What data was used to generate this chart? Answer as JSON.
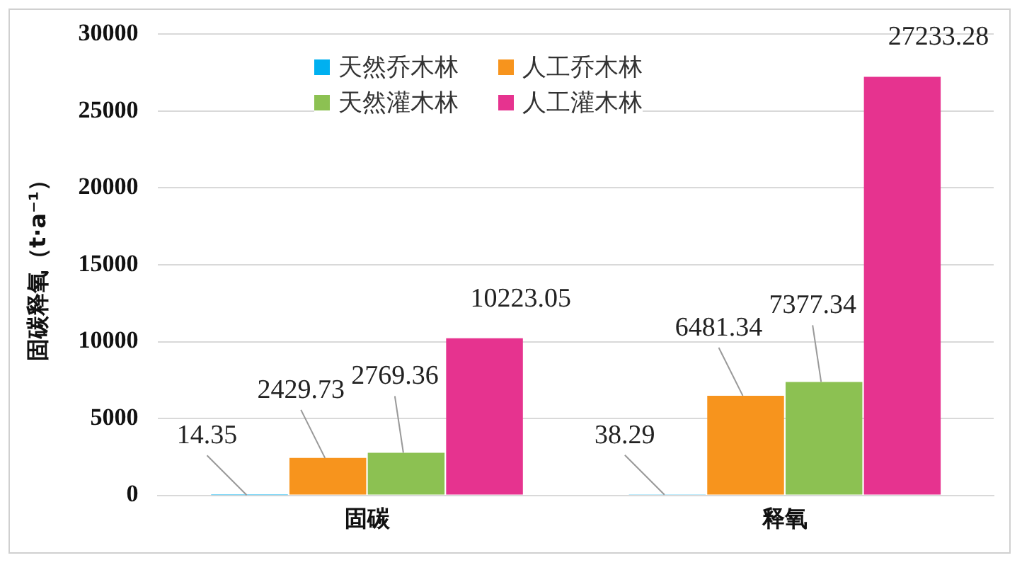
{
  "chart_data": {
    "type": "bar",
    "ylabel": "固碳释氧（t·a⁻¹）",
    "categories": [
      "固碳",
      "释氧"
    ],
    "series": [
      {
        "name": "天然乔木林",
        "color": "#00b0f0",
        "values": [
          14.35,
          38.29
        ]
      },
      {
        "name": "人工乔木林",
        "color": "#f7941d",
        "values": [
          2429.73,
          6481.34
        ]
      },
      {
        "name": "天然灌木林",
        "color": "#8cc152",
        "values": [
          2769.36,
          7377.34
        ]
      },
      {
        "name": "人工灌木林",
        "color": "#e6338f",
        "values": [
          10223.05,
          27233.28
        ]
      }
    ],
    "ylim": [
      0,
      30000
    ],
    "yticks": [
      0,
      5000,
      10000,
      15000,
      20000,
      25000,
      30000
    ],
    "grid": "y",
    "legend": "top",
    "data_labels": true
  }
}
